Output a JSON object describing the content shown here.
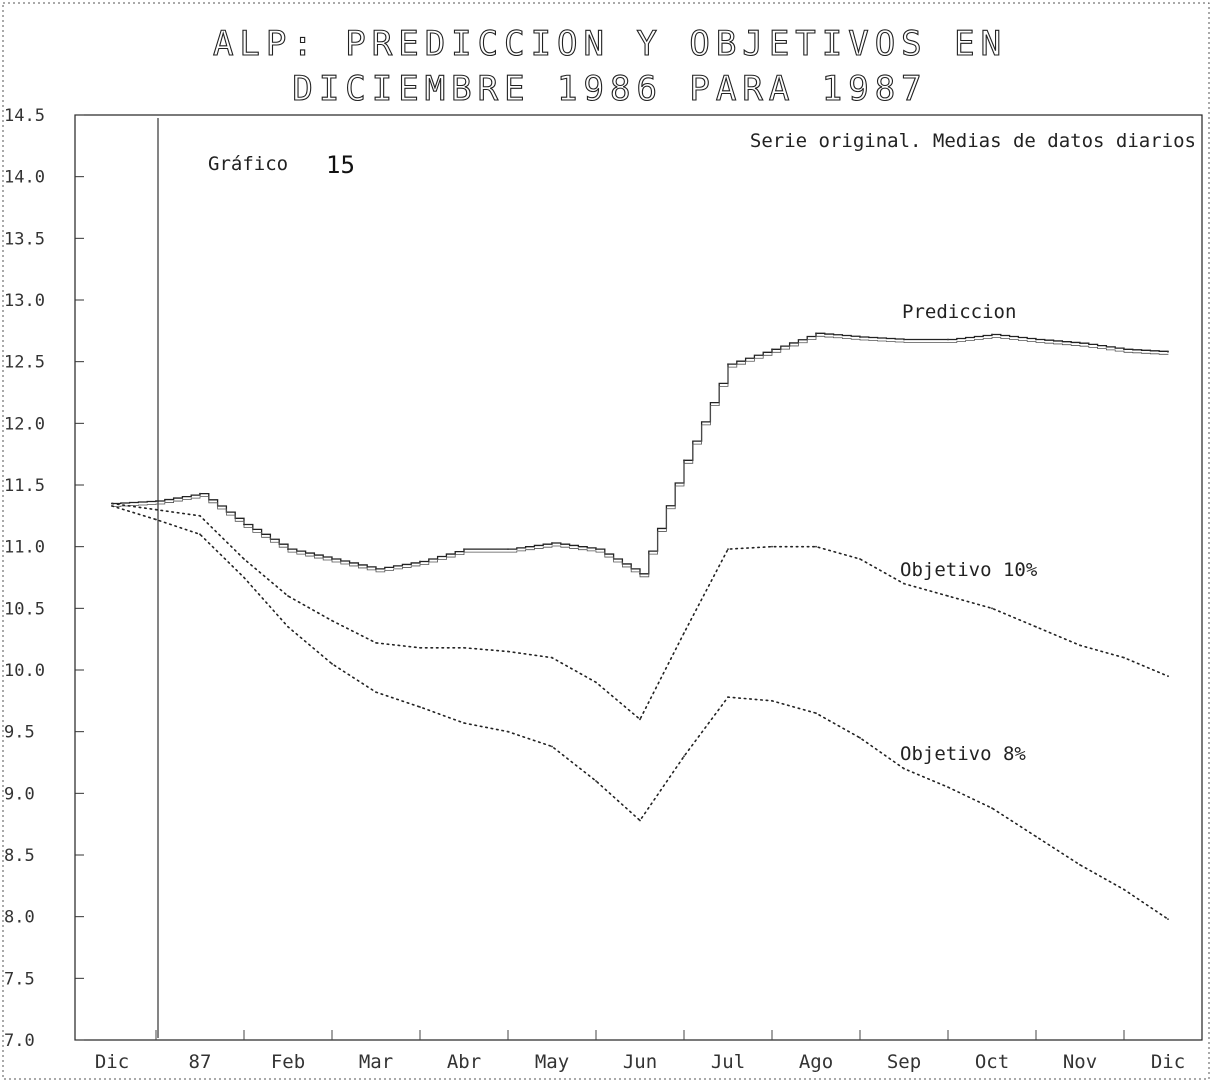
{
  "chart_data": {
    "type": "line",
    "title_line1": "ALP: PREDICCION Y OBJETIVOS EN",
    "title_line2": "DICIEMBRE 1986 PARA 1987",
    "subtitle": "Serie original. Medias de datos diarios",
    "graph_label": "Gráfico",
    "graph_number": "15",
    "xlabel": "",
    "ylabel": "",
    "ylim": [
      7.0,
      14.5
    ],
    "y_ticks": [
      "14.5",
      "14.0",
      "13.5",
      "13.0",
      "12.5",
      "12.0",
      "11.5",
      "11.0",
      "10.5",
      "10.0",
      "9.5",
      "9.0",
      "8.5",
      "8.0",
      "7.5",
      "7.0"
    ],
    "categories": [
      "Dic",
      "87",
      "Feb",
      "Mar",
      "Abr",
      "May",
      "Jun",
      "Jul",
      "Ago",
      "Sep",
      "Oct",
      "Nov",
      "Dic"
    ],
    "series": [
      {
        "name": "Prediccion",
        "style": "stepped",
        "x": [
          0,
          0.5,
          1,
          1.5,
          2,
          2.5,
          3,
          3.5,
          4,
          4.5,
          5,
          5.5,
          6,
          6.5,
          7,
          7.5,
          8,
          8.5,
          9,
          9.5,
          10,
          10.5,
          11,
          11.5,
          12
        ],
        "values": [
          11.35,
          11.37,
          11.43,
          11.18,
          10.98,
          10.9,
          10.82,
          10.88,
          10.98,
          10.98,
          11.03,
          10.98,
          10.78,
          11.7,
          12.48,
          12.6,
          12.73,
          12.7,
          12.68,
          12.68,
          12.72,
          12.68,
          12.65,
          12.6,
          12.58
        ]
      },
      {
        "name": "Objetivo 10%",
        "style": "dotted",
        "x": [
          0,
          0.5,
          1,
          1.5,
          2,
          2.5,
          3,
          3.5,
          4,
          4.5,
          5,
          5.5,
          6,
          6.5,
          7,
          7.5,
          8,
          8.5,
          9,
          9.5,
          10,
          10.5,
          11,
          11.5,
          12
        ],
        "values": [
          11.35,
          11.3,
          11.25,
          10.9,
          10.6,
          10.4,
          10.22,
          10.18,
          10.18,
          10.15,
          10.1,
          9.9,
          9.6,
          10.3,
          10.98,
          11.0,
          11.0,
          10.9,
          10.7,
          10.6,
          10.5,
          10.35,
          10.2,
          10.1,
          9.95
        ]
      },
      {
        "name": "Objetivo 8%",
        "style": "dotted",
        "x": [
          0,
          0.5,
          1,
          1.5,
          2,
          2.5,
          3,
          3.5,
          4,
          4.5,
          5,
          5.5,
          6,
          6.5,
          7,
          7.5,
          8,
          8.5,
          9,
          9.5,
          10,
          10.5,
          11,
          11.5,
          12
        ],
        "values": [
          11.33,
          11.22,
          11.1,
          10.75,
          10.35,
          10.05,
          9.82,
          9.7,
          9.57,
          9.5,
          9.38,
          9.1,
          8.78,
          9.3,
          9.78,
          9.75,
          9.65,
          9.45,
          9.2,
          9.05,
          8.88,
          8.65,
          8.42,
          8.22,
          7.98
        ]
      }
    ],
    "annotations": {
      "prediccion": "Prediccion",
      "objetivo10": "Objetivo 10%",
      "objetivo8": "Objetivo 8%"
    },
    "grid": false,
    "legend": "none"
  }
}
